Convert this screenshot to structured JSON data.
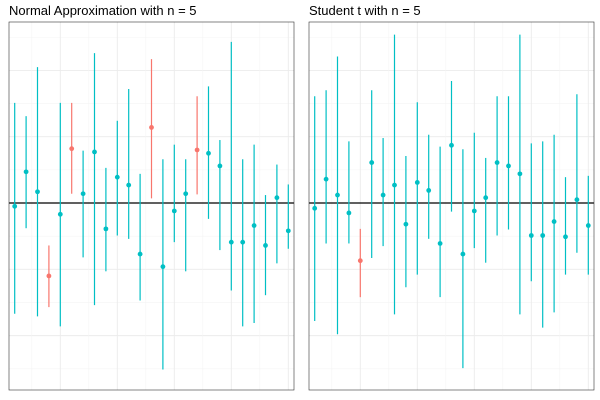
{
  "chart_data": [
    {
      "type": "errorbar",
      "title": "Normal Approximation with n = 5",
      "reference_y": 0,
      "ylim": [
        -2.82,
        2.73
      ],
      "grid": true,
      "colors": {
        "covers": "#00BFC4",
        "misses": "#F8766D"
      },
      "intervals": [
        {
          "x": 1,
          "estimate": -0.05,
          "lower": -1.67,
          "upper": 1.51,
          "covers": true
        },
        {
          "x": 2,
          "estimate": 0.47,
          "lower": -0.38,
          "upper": 1.31,
          "covers": true
        },
        {
          "x": 3,
          "estimate": 0.17,
          "lower": -1.71,
          "upper": 2.05,
          "covers": true
        },
        {
          "x": 4,
          "estimate": -1.1,
          "lower": -1.57,
          "upper": -0.64,
          "covers": false
        },
        {
          "x": 5,
          "estimate": -0.17,
          "lower": -1.86,
          "upper": 1.51,
          "covers": true
        },
        {
          "x": 6,
          "estimate": 0.82,
          "lower": 0.14,
          "upper": 1.51,
          "covers": false
        },
        {
          "x": 7,
          "estimate": 0.14,
          "lower": -0.82,
          "upper": 0.79,
          "covers": true
        },
        {
          "x": 8,
          "estimate": 0.77,
          "lower": -1.54,
          "upper": 2.26,
          "covers": true
        },
        {
          "x": 9,
          "estimate": -0.39,
          "lower": -1.03,
          "upper": 0.53,
          "covers": true
        },
        {
          "x": 10,
          "estimate": 0.39,
          "lower": -0.49,
          "upper": 1.24,
          "covers": true
        },
        {
          "x": 11,
          "estimate": 0.27,
          "lower": -0.54,
          "upper": 1.72,
          "covers": true
        },
        {
          "x": 12,
          "estimate": -0.77,
          "lower": -1.47,
          "upper": 0.44,
          "covers": true
        },
        {
          "x": 13,
          "estimate": 1.14,
          "lower": 0.07,
          "upper": 2.17,
          "covers": false
        },
        {
          "x": 14,
          "estimate": -0.96,
          "lower": -2.51,
          "upper": 0.66,
          "covers": true
        },
        {
          "x": 15,
          "estimate": -0.12,
          "lower": -0.59,
          "upper": 0.88,
          "covers": true
        },
        {
          "x": 16,
          "estimate": 0.14,
          "lower": -1.03,
          "upper": 0.66,
          "covers": true
        },
        {
          "x": 17,
          "estimate": 0.8,
          "lower": 0.13,
          "upper": 1.61,
          "covers": false
        },
        {
          "x": 18,
          "estimate": 0.75,
          "lower": -0.24,
          "upper": 1.76,
          "covers": true
        },
        {
          "x": 19,
          "estimate": 0.56,
          "lower": -0.71,
          "upper": 0.95,
          "covers": true
        },
        {
          "x": 20,
          "estimate": -0.59,
          "lower": -1.32,
          "upper": 2.43,
          "covers": true
        },
        {
          "x": 21,
          "estimate": -0.59,
          "lower": -1.86,
          "upper": 0.66,
          "covers": true
        },
        {
          "x": 22,
          "estimate": -0.34,
          "lower": -1.81,
          "upper": 0.88,
          "covers": true
        },
        {
          "x": 23,
          "estimate": -0.64,
          "lower": -1.39,
          "upper": 0.12,
          "covers": true
        },
        {
          "x": 24,
          "estimate": 0.08,
          "lower": -0.91,
          "upper": 0.58,
          "covers": true
        },
        {
          "x": 25,
          "estimate": -0.42,
          "lower": -0.69,
          "upper": 0.28,
          "covers": true
        }
      ]
    },
    {
      "type": "errorbar",
      "title": "Student t with n = 5",
      "reference_y": 0,
      "ylim": [
        -2.82,
        2.73
      ],
      "grid": true,
      "colors": {
        "covers": "#00BFC4",
        "misses": "#F8766D"
      },
      "intervals": [
        {
          "x": 1,
          "estimate": -0.08,
          "lower": -1.78,
          "upper": 1.61,
          "covers": true
        },
        {
          "x": 2,
          "estimate": 0.36,
          "lower": -0.61,
          "upper": 1.7,
          "covers": true
        },
        {
          "x": 3,
          "estimate": 0.12,
          "lower": -1.98,
          "upper": 2.21,
          "covers": true
        },
        {
          "x": 4,
          "estimate": -0.15,
          "lower": -0.61,
          "upper": 0.93,
          "covers": true
        },
        {
          "x": 5,
          "estimate": -0.87,
          "lower": -1.42,
          "upper": -0.39,
          "covers": false
        },
        {
          "x": 6,
          "estimate": 0.61,
          "lower": -0.83,
          "upper": 1.7,
          "covers": true
        },
        {
          "x": 7,
          "estimate": 0.12,
          "lower": -0.65,
          "upper": 0.98,
          "covers": true
        },
        {
          "x": 8,
          "estimate": 0.27,
          "lower": -1.68,
          "upper": 2.54,
          "covers": true
        },
        {
          "x": 9,
          "estimate": -0.32,
          "lower": -1.27,
          "upper": 0.71,
          "covers": true
        },
        {
          "x": 10,
          "estimate": 0.31,
          "lower": -1.08,
          "upper": 1.52,
          "covers": true
        },
        {
          "x": 11,
          "estimate": 0.19,
          "lower": -0.54,
          "upper": 1.03,
          "covers": true
        },
        {
          "x": 12,
          "estimate": -0.61,
          "lower": -1.42,
          "upper": 0.85,
          "covers": true
        },
        {
          "x": 13,
          "estimate": 0.87,
          "lower": -0.13,
          "upper": 1.84,
          "covers": true
        },
        {
          "x": 14,
          "estimate": -0.77,
          "lower": -2.49,
          "upper": 0.81,
          "covers": true
        },
        {
          "x": 15,
          "estimate": -0.12,
          "lower": -0.68,
          "upper": 1.06,
          "covers": true
        },
        {
          "x": 16,
          "estimate": 0.08,
          "lower": -0.9,
          "upper": 0.68,
          "covers": true
        },
        {
          "x": 17,
          "estimate": 0.61,
          "lower": -0.49,
          "upper": 1.61,
          "covers": true
        },
        {
          "x": 18,
          "estimate": 0.56,
          "lower": -0.4,
          "upper": 1.61,
          "covers": true
        },
        {
          "x": 19,
          "estimate": 0.44,
          "lower": -1.68,
          "upper": 2.54,
          "covers": true
        },
        {
          "x": 20,
          "estimate": -0.49,
          "lower": -1.18,
          "upper": 0.9,
          "covers": true
        },
        {
          "x": 21,
          "estimate": -0.49,
          "lower": -1.88,
          "upper": 0.93,
          "covers": true
        },
        {
          "x": 22,
          "estimate": -0.28,
          "lower": -1.65,
          "upper": 1.03,
          "covers": true
        },
        {
          "x": 23,
          "estimate": -0.51,
          "lower": -1.08,
          "upper": 0.39,
          "covers": true
        },
        {
          "x": 24,
          "estimate": 0.05,
          "lower": -0.75,
          "upper": 1.64,
          "covers": true
        },
        {
          "x": 25,
          "estimate": -0.34,
          "lower": -1.08,
          "upper": 0.41,
          "covers": true
        }
      ]
    }
  ]
}
